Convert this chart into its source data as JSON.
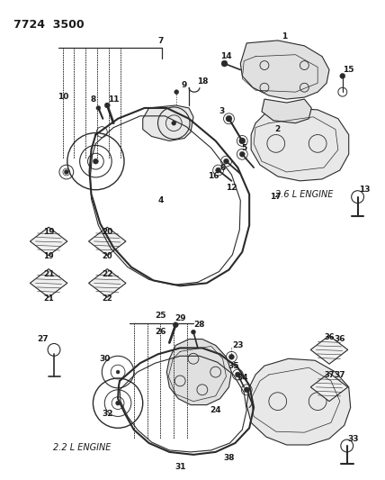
{
  "title": "7724  3500",
  "bg_color": "#ffffff",
  "line_color": "#2a2a2a",
  "text_color": "#1a1a1a",
  "fig_width": 4.28,
  "fig_height": 5.33,
  "dpi": 100,
  "label_2_6": "2.6 L ENGINE",
  "label_2_2": "2.2 L ENGINE"
}
